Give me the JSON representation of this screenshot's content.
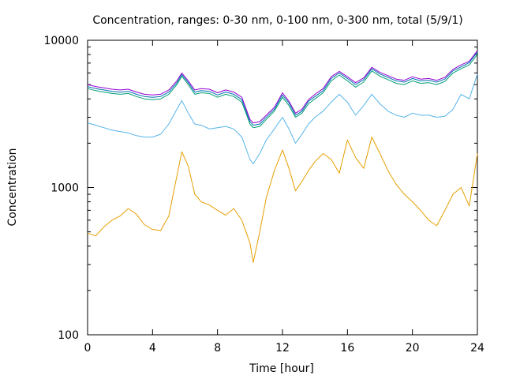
{
  "chart_data": {
    "type": "line",
    "title": "Concentration, ranges: 0-30 nm, 0-100 nm, 0-300 nm, total (5/9/1)",
    "xlabel": "Time [hour]",
    "ylabel": "Concentration",
    "xlim": [
      0,
      24
    ],
    "ylim": [
      100,
      10000
    ],
    "yscale": "log",
    "grid": false,
    "xticks": [
      0,
      4,
      8,
      12,
      16,
      20,
      24
    ],
    "xtick_labels": [
      "0",
      "4",
      "8",
      "12",
      "16",
      "20",
      "24"
    ],
    "yticks": [
      100,
      1000,
      10000
    ],
    "ytick_labels": [
      "100",
      "1000",
      "10000"
    ],
    "series": [
      {
        "color": "#e69f00",
        "x": [
          0,
          0.5,
          1,
          1.5,
          2,
          2.5,
          3,
          3.5,
          4,
          4.5,
          5,
          5.5,
          5.8,
          6.2,
          6.6,
          7,
          7.5,
          8,
          8.5,
          9,
          9.5,
          10,
          10.2,
          10.6,
          11,
          11.5,
          12,
          12.4,
          12.8,
          13.2,
          13.6,
          14,
          14.5,
          15,
          15.5,
          16,
          16.5,
          17,
          17.5,
          18,
          18.5,
          19,
          19.5,
          20,
          20.5,
          21,
          21.5,
          22,
          22.5,
          23,
          23.5,
          24
        ],
        "y": [
          490,
          470,
          540,
          600,
          640,
          720,
          660,
          560,
          520,
          510,
          640,
          1200,
          1750,
          1400,
          900,
          800,
          760,
          700,
          650,
          720,
          600,
          420,
          310,
          500,
          850,
          1300,
          1800,
          1350,
          950,
          1100,
          1300,
          1500,
          1700,
          1550,
          1250,
          2100,
          1600,
          1350,
          2200,
          1700,
          1300,
          1050,
          900,
          800,
          700,
          600,
          550,
          700,
          900,
          1000,
          750,
          1700
        ]
      },
      {
        "color": "#56b4e9",
        "x": [
          0,
          0.5,
          1,
          1.5,
          2,
          2.5,
          3,
          3.5,
          4,
          4.5,
          5,
          5.5,
          5.8,
          6.2,
          6.6,
          7,
          7.5,
          8,
          8.5,
          9,
          9.5,
          10,
          10.2,
          10.6,
          11,
          11.5,
          12,
          12.4,
          12.8,
          13.2,
          13.6,
          14,
          14.5,
          15,
          15.5,
          16,
          16.5,
          17,
          17.5,
          18,
          18.5,
          19,
          19.5,
          20,
          20.5,
          21,
          21.5,
          22,
          22.5,
          23,
          23.5,
          24
        ],
        "y": [
          2750,
          2650,
          2550,
          2450,
          2400,
          2350,
          2250,
          2200,
          2200,
          2300,
          2700,
          3400,
          3900,
          3200,
          2700,
          2650,
          2500,
          2550,
          2600,
          2500,
          2200,
          1550,
          1450,
          1700,
          2100,
          2500,
          3000,
          2500,
          2000,
          2300,
          2700,
          3000,
          3300,
          3800,
          4300,
          3800,
          3100,
          3600,
          4300,
          3700,
          3300,
          3100,
          3000,
          3200,
          3100,
          3100,
          3000,
          3050,
          3400,
          4300,
          4000,
          5900
        ]
      },
      {
        "color": "#009e73",
        "x": [
          0,
          0.5,
          1,
          1.5,
          2,
          2.5,
          3,
          3.5,
          4,
          4.5,
          5,
          5.5,
          5.8,
          6.2,
          6.6,
          7,
          7.5,
          8,
          8.5,
          9,
          9.5,
          10,
          10.2,
          10.6,
          11,
          11.5,
          12,
          12.4,
          12.8,
          13.2,
          13.6,
          14,
          14.5,
          15,
          15.5,
          16,
          16.5,
          17,
          17.5,
          18,
          18.5,
          19,
          19.5,
          20,
          20.5,
          21,
          21.5,
          22,
          22.5,
          23,
          23.5,
          24
        ],
        "y": [
          4700,
          4550,
          4450,
          4350,
          4300,
          4350,
          4150,
          4000,
          3950,
          4000,
          4300,
          5000,
          5700,
          5000,
          4300,
          4400,
          4350,
          4100,
          4300,
          4150,
          3800,
          2700,
          2550,
          2600,
          2900,
          3300,
          4100,
          3600,
          3000,
          3200,
          3700,
          4000,
          4400,
          5300,
          5800,
          5300,
          4800,
          5200,
          6200,
          5700,
          5400,
          5100,
          5000,
          5300,
          5100,
          5150,
          5000,
          5250,
          6000,
          6400,
          6800,
          8000
        ]
      },
      {
        "color": "#0072b2",
        "x": [
          0,
          0.5,
          1,
          1.5,
          2,
          2.5,
          3,
          3.5,
          4,
          4.5,
          5,
          5.5,
          5.8,
          6.2,
          6.6,
          7,
          7.5,
          8,
          8.5,
          9,
          9.5,
          10,
          10.2,
          10.6,
          11,
          11.5,
          12,
          12.4,
          12.8,
          13.2,
          13.6,
          14,
          14.5,
          15,
          15.5,
          16,
          16.5,
          17,
          17.5,
          18,
          18.5,
          19,
          19.5,
          20,
          20.5,
          21,
          21.5,
          22,
          22.5,
          23,
          23.5,
          24
        ],
        "y": [
          4850,
          4700,
          4600,
          4500,
          4450,
          4500,
          4300,
          4150,
          4100,
          4150,
          4450,
          5150,
          5850,
          5150,
          4450,
          4550,
          4500,
          4250,
          4450,
          4300,
          3950,
          2800,
          2650,
          2700,
          3000,
          3400,
          4250,
          3750,
          3100,
          3300,
          3850,
          4150,
          4550,
          5500,
          6000,
          5500,
          5000,
          5400,
          6400,
          5900,
          5600,
          5300,
          5200,
          5500,
          5300,
          5350,
          5200,
          5450,
          6200,
          6600,
          7050,
          8300
        ]
      },
      {
        "color": "#9400d3",
        "x": [
          0,
          0.5,
          1,
          1.5,
          2,
          2.5,
          3,
          3.5,
          4,
          4.5,
          5,
          5.5,
          5.8,
          6.2,
          6.6,
          7,
          7.5,
          8,
          8.5,
          9,
          9.5,
          10,
          10.2,
          10.6,
          11,
          11.5,
          12,
          12.4,
          12.8,
          13.2,
          13.6,
          14,
          14.5,
          15,
          15.5,
          16,
          16.5,
          17,
          17.5,
          18,
          18.5,
          19,
          19.5,
          20,
          20.5,
          21,
          21.5,
          22,
          22.5,
          23,
          23.5,
          24
        ],
        "y": [
          5000,
          4850,
          4750,
          4650,
          4600,
          4650,
          4450,
          4300,
          4250,
          4300,
          4600,
          5300,
          6000,
          5300,
          4600,
          4700,
          4650,
          4400,
          4600,
          4450,
          4100,
          2900,
          2750,
          2800,
          3100,
          3500,
          4400,
          3850,
          3200,
          3400,
          3950,
          4300,
          4700,
          5650,
          6150,
          5650,
          5150,
          5550,
          6550,
          6050,
          5750,
          5450,
          5350,
          5650,
          5450,
          5500,
          5350,
          5600,
          6350,
          6800,
          7200,
          8500
        ]
      }
    ]
  }
}
